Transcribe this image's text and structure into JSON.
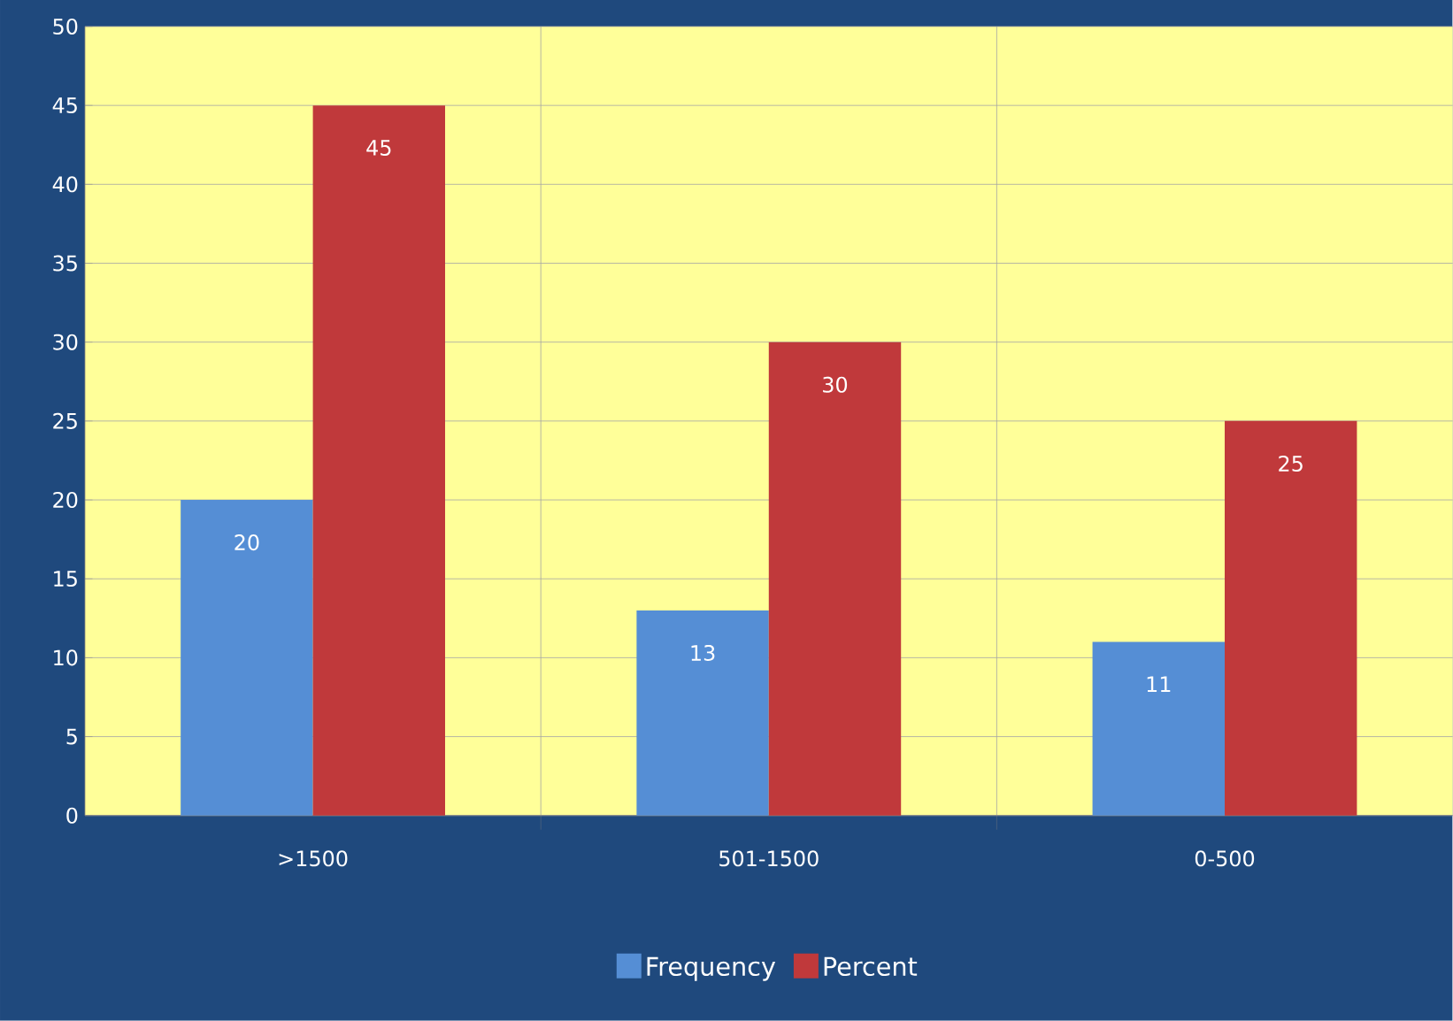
{
  "chart_data": {
    "type": "bar",
    "categories": [
      ">1500",
      "501-1500",
      "0-500"
    ],
    "series": [
      {
        "name": "Frequency",
        "color": "#558ed5",
        "values": [
          20,
          13,
          11
        ]
      },
      {
        "name": "Percent",
        "color": "#c0393b",
        "values": [
          45,
          30,
          25
        ]
      }
    ],
    "ylim": [
      0,
      50
    ],
    "yticks": [
      0,
      5,
      10,
      15,
      20,
      25,
      30,
      35,
      40,
      45,
      50
    ],
    "grid": true,
    "legend": "bottom",
    "data_labels": true
  }
}
